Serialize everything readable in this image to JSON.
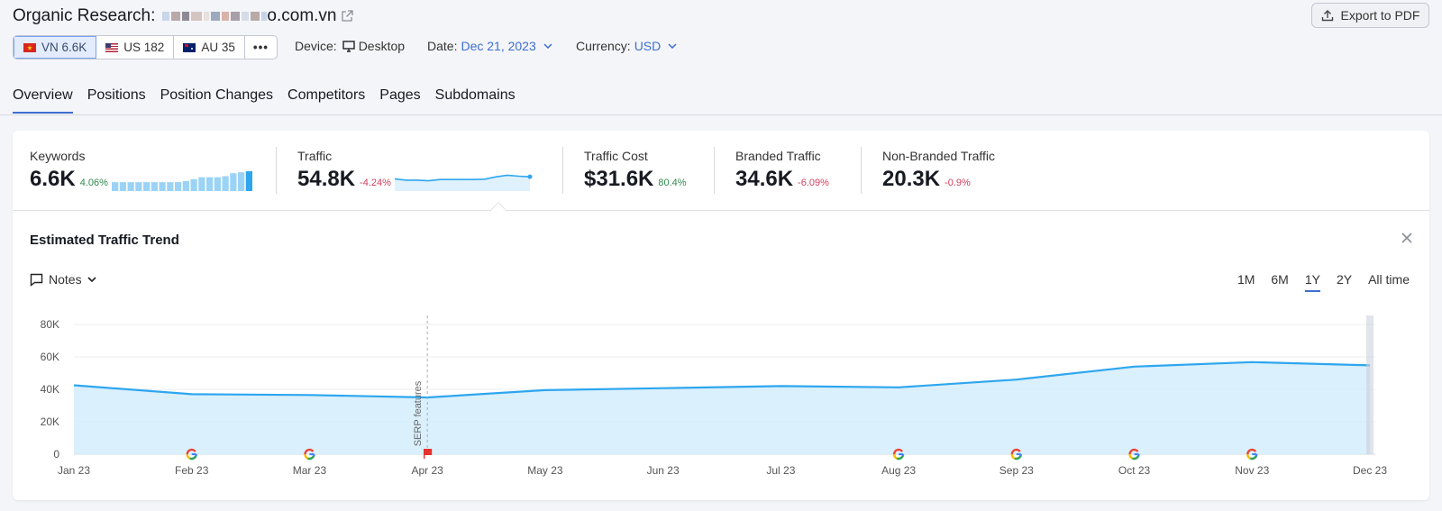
{
  "header": {
    "title": "Organic Research:",
    "domain_suffix": "o.com.vn",
    "export_label": "Export to PDF"
  },
  "databases": [
    {
      "code": "VN",
      "count": "VN 6.6K",
      "active": true
    },
    {
      "code": "US",
      "count": "US 182",
      "active": false
    },
    {
      "code": "AU",
      "count": "AU 35",
      "active": false
    }
  ],
  "more_label": "•••",
  "filters": {
    "device_label": "Device:",
    "device_value": "Desktop",
    "date_label": "Date:",
    "date_value": "Dec 21, 2023",
    "currency_label": "Currency:",
    "currency_value": "USD"
  },
  "tabs": [
    "Overview",
    "Positions",
    "Position Changes",
    "Competitors",
    "Pages",
    "Subdomains"
  ],
  "metrics": [
    {
      "label": "Keywords",
      "value": "6.6K",
      "change": "4.06%",
      "trend": "up"
    },
    {
      "label": "Traffic",
      "value": "54.8K",
      "change": "-4.24%",
      "trend": "down"
    },
    {
      "label": "Traffic Cost",
      "value": "$31.6K",
      "change": "80.4%",
      "trend": "up"
    },
    {
      "label": "Branded Traffic",
      "value": "34.6K",
      "change": "-6.09%",
      "trend": "down"
    },
    {
      "label": "Non-Branded Traffic",
      "value": "20.3K",
      "change": "-0.9%",
      "trend": "down"
    }
  ],
  "keywords_spark": [
    0.45,
    0.45,
    0.45,
    0.45,
    0.45,
    0.45,
    0.45,
    0.45,
    0.45,
    0.5,
    0.6,
    0.7,
    0.7,
    0.7,
    0.75,
    0.9,
    0.95,
    1.0
  ],
  "traffic_spark": [
    0.62,
    0.55,
    0.55,
    0.52,
    0.58,
    0.58,
    0.58,
    0.58,
    0.6,
    0.72,
    0.8,
    0.75,
    0.72
  ],
  "trend": {
    "title": "Estimated Traffic Trend",
    "notes_label": "Notes",
    "ranges": [
      {
        "label": "1M",
        "active": false
      },
      {
        "label": "6M",
        "active": false
      },
      {
        "label": "1Y",
        "active": true
      },
      {
        "label": "2Y",
        "active": false
      },
      {
        "label": "All time",
        "active": false
      }
    ]
  },
  "colors": {
    "accent": "#3d6fd1",
    "line": "#2ea6ef",
    "fill": "#d4edfb",
    "positive": "#2f8a4e",
    "negative": "#d1415f"
  },
  "chart_data": {
    "type": "area",
    "x": [
      "Jan 23",
      "Feb 23",
      "Mar 23",
      "Apr 23",
      "May 23",
      "Jun 23",
      "Jul 23",
      "Aug 23",
      "Sep 23",
      "Oct 23",
      "Nov 23",
      "Dec 23"
    ],
    "series": [
      {
        "values": [
          42500,
          37000,
          36500,
          35000,
          39500,
          40700,
          42000,
          41200,
          46000,
          54000,
          56800,
          54800
        ]
      }
    ],
    "y_ticks": [
      "0",
      "20K",
      "40K",
      "60K",
      "80K"
    ],
    "ylim": [
      0,
      80000
    ],
    "grid": true,
    "annotation": {
      "x": "Apr 23",
      "label": "SERP features"
    },
    "google_update_markers": [
      "Feb 23",
      "Mar 23",
      "Aug 23",
      "Sep 23",
      "Oct 23",
      "Nov 23"
    ],
    "flag_marker": "Apr 23"
  }
}
